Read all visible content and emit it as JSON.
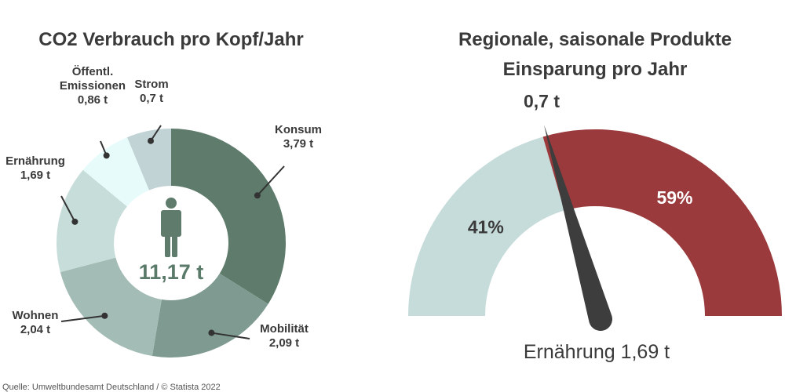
{
  "colors": {
    "konsum": "#5e7b6b",
    "mobilitaet": "#7f9b91",
    "wohnen": "#a3bcb5",
    "ernaehrung": "#c6ddd9",
    "emissionen": "#e8fbfb",
    "strom": "#c2d3d6",
    "gauge_left": "#c6dcda",
    "gauge_right": "#9a3a3c",
    "needle": "#3d3d3d"
  },
  "source": "Quelle: Umweltbundesamt Deutschland / © Statista 2022",
  "chart_data": [
    {
      "type": "pie",
      "title": "CO2 Verbrauch pro Kopf/Jahr",
      "center_label": "11,17 t",
      "center_icon": "person-icon",
      "slices": [
        {
          "name": "Konsum",
          "value": 3.79,
          "label": "3,79 t",
          "color": "#5e7b6b"
        },
        {
          "name": "Mobilität",
          "value": 2.09,
          "label": "2,09 t",
          "color": "#7f9b91"
        },
        {
          "name": "Wohnen",
          "value": 2.04,
          "label": "2,04 t",
          "color": "#a3bcb5"
        },
        {
          "name": "Ernährung",
          "value": 1.69,
          "label": "1,69 t",
          "color": "#c6ddd9"
        },
        {
          "name": "Öffentl. Emissionen",
          "name_lines": [
            "Öffentl.",
            "Emissionen"
          ],
          "value": 0.86,
          "label": "0,86 t",
          "color": "#e8fbfb"
        },
        {
          "name": "Strom",
          "value": 0.7,
          "label": "0,7 t",
          "color": "#c2d3d6"
        }
      ]
    },
    {
      "type": "gauge",
      "title_lines": [
        "Regionale, saisonale Produkte",
        "Einsparung pro Jahr"
      ],
      "needle_value_label": "0,7 t",
      "needle_fraction": 0.41,
      "segments": [
        {
          "label": "41%",
          "value": 41,
          "color": "#c6dcda"
        },
        {
          "label": "59%",
          "value": 59,
          "color": "#9a3a3c"
        }
      ],
      "category_label": "Ernährung 1,69 t"
    }
  ]
}
